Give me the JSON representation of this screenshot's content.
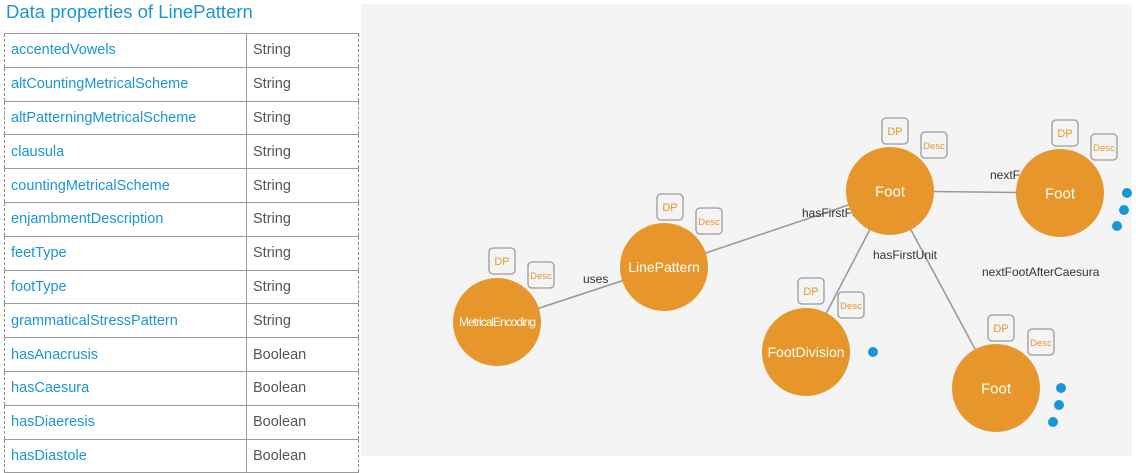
{
  "page": {
    "title": "Data properties of LinePattern"
  },
  "properties": [
    {
      "name": "accentedVowels",
      "type": "String"
    },
    {
      "name": "altCountingMetricalScheme",
      "type": "String"
    },
    {
      "name": "altPatterningMetricalScheme",
      "type": "String"
    },
    {
      "name": "clausula",
      "type": "String"
    },
    {
      "name": "countingMetricalScheme",
      "type": "String"
    },
    {
      "name": "enjambmentDescription",
      "type": "String"
    },
    {
      "name": "feetType",
      "type": "String"
    },
    {
      "name": "footType",
      "type": "String"
    },
    {
      "name": "grammaticalStressPattern",
      "type": "String"
    },
    {
      "name": "hasAnacrusis",
      "type": "Boolean"
    },
    {
      "name": "hasCaesura",
      "type": "Boolean"
    },
    {
      "name": "hasDiaeresis",
      "type": "Boolean"
    },
    {
      "name": "hasDiastole",
      "type": "Boolean"
    }
  ],
  "graph": {
    "colors": {
      "node": "#e6962a",
      "dp_border": "#9a9a9a",
      "dp_fill": "#f4f4f4",
      "dp_text": "#e6962a",
      "dot": "#1a96d4",
      "edge": "#9a9a9a",
      "edge_text": "#333333"
    },
    "badges": {
      "dp": "DP",
      "desc": "Desc"
    },
    "nodes": [
      {
        "id": "metrical-encoding",
        "label": "MetricalEncoding"
      },
      {
        "id": "line-pattern",
        "label": "LinePattern"
      },
      {
        "id": "foot-1",
        "label": "Foot"
      },
      {
        "id": "foot-2",
        "label": "Foot"
      },
      {
        "id": "foot-division",
        "label": "FootDivision"
      },
      {
        "id": "foot-3",
        "label": "Foot"
      }
    ],
    "edges": [
      {
        "from": "metrical-encoding",
        "to": "line-pattern",
        "label": "uses"
      },
      {
        "from": "line-pattern",
        "to": "foot-1",
        "label": "hasFirstFoot"
      },
      {
        "from": "foot-1",
        "to": "foot-2",
        "label": "nextFoot"
      },
      {
        "from": "foot-1",
        "to": "foot-division",
        "label": "hasFirstUnit"
      },
      {
        "from": "foot-1",
        "to": "foot-3",
        "label": "nextFootAfterCaesura"
      }
    ]
  }
}
